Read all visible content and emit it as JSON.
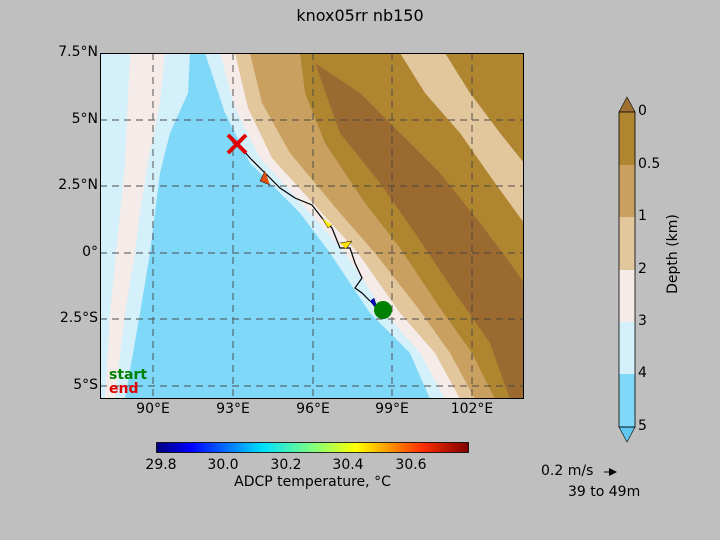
{
  "title": "knox05rr nb150",
  "map": {
    "lat_labels": [
      "7.5°N",
      "5°N",
      "2.5°N",
      "0°",
      "2.5°S",
      "5°S"
    ],
    "lon_labels": [
      "90°E",
      "93°E",
      "96°E",
      "99°E",
      "102°E"
    ],
    "legend": {
      "start": "start",
      "end": "end"
    },
    "colors": {
      "start": "#008000",
      "end": "#e00000"
    }
  },
  "depth_colorbar": {
    "label": "Depth (km)",
    "ticks": [
      "0",
      "0.5",
      "1",
      "2",
      "3",
      "4",
      "5"
    ],
    "colors": [
      "#b08530",
      "#c9a060",
      "#e2c69c",
      "#f5ebe8",
      "#d4f0fa",
      "#80d8f8"
    ]
  },
  "temp_colorbar": {
    "label": "ADCP temperature, °C",
    "ticks": [
      "29.8",
      "30.0",
      "30.2",
      "30.4",
      "30.6"
    ]
  },
  "vector_key": {
    "speed": "0.2 m/s",
    "depth_range": "39 to 49m"
  }
}
